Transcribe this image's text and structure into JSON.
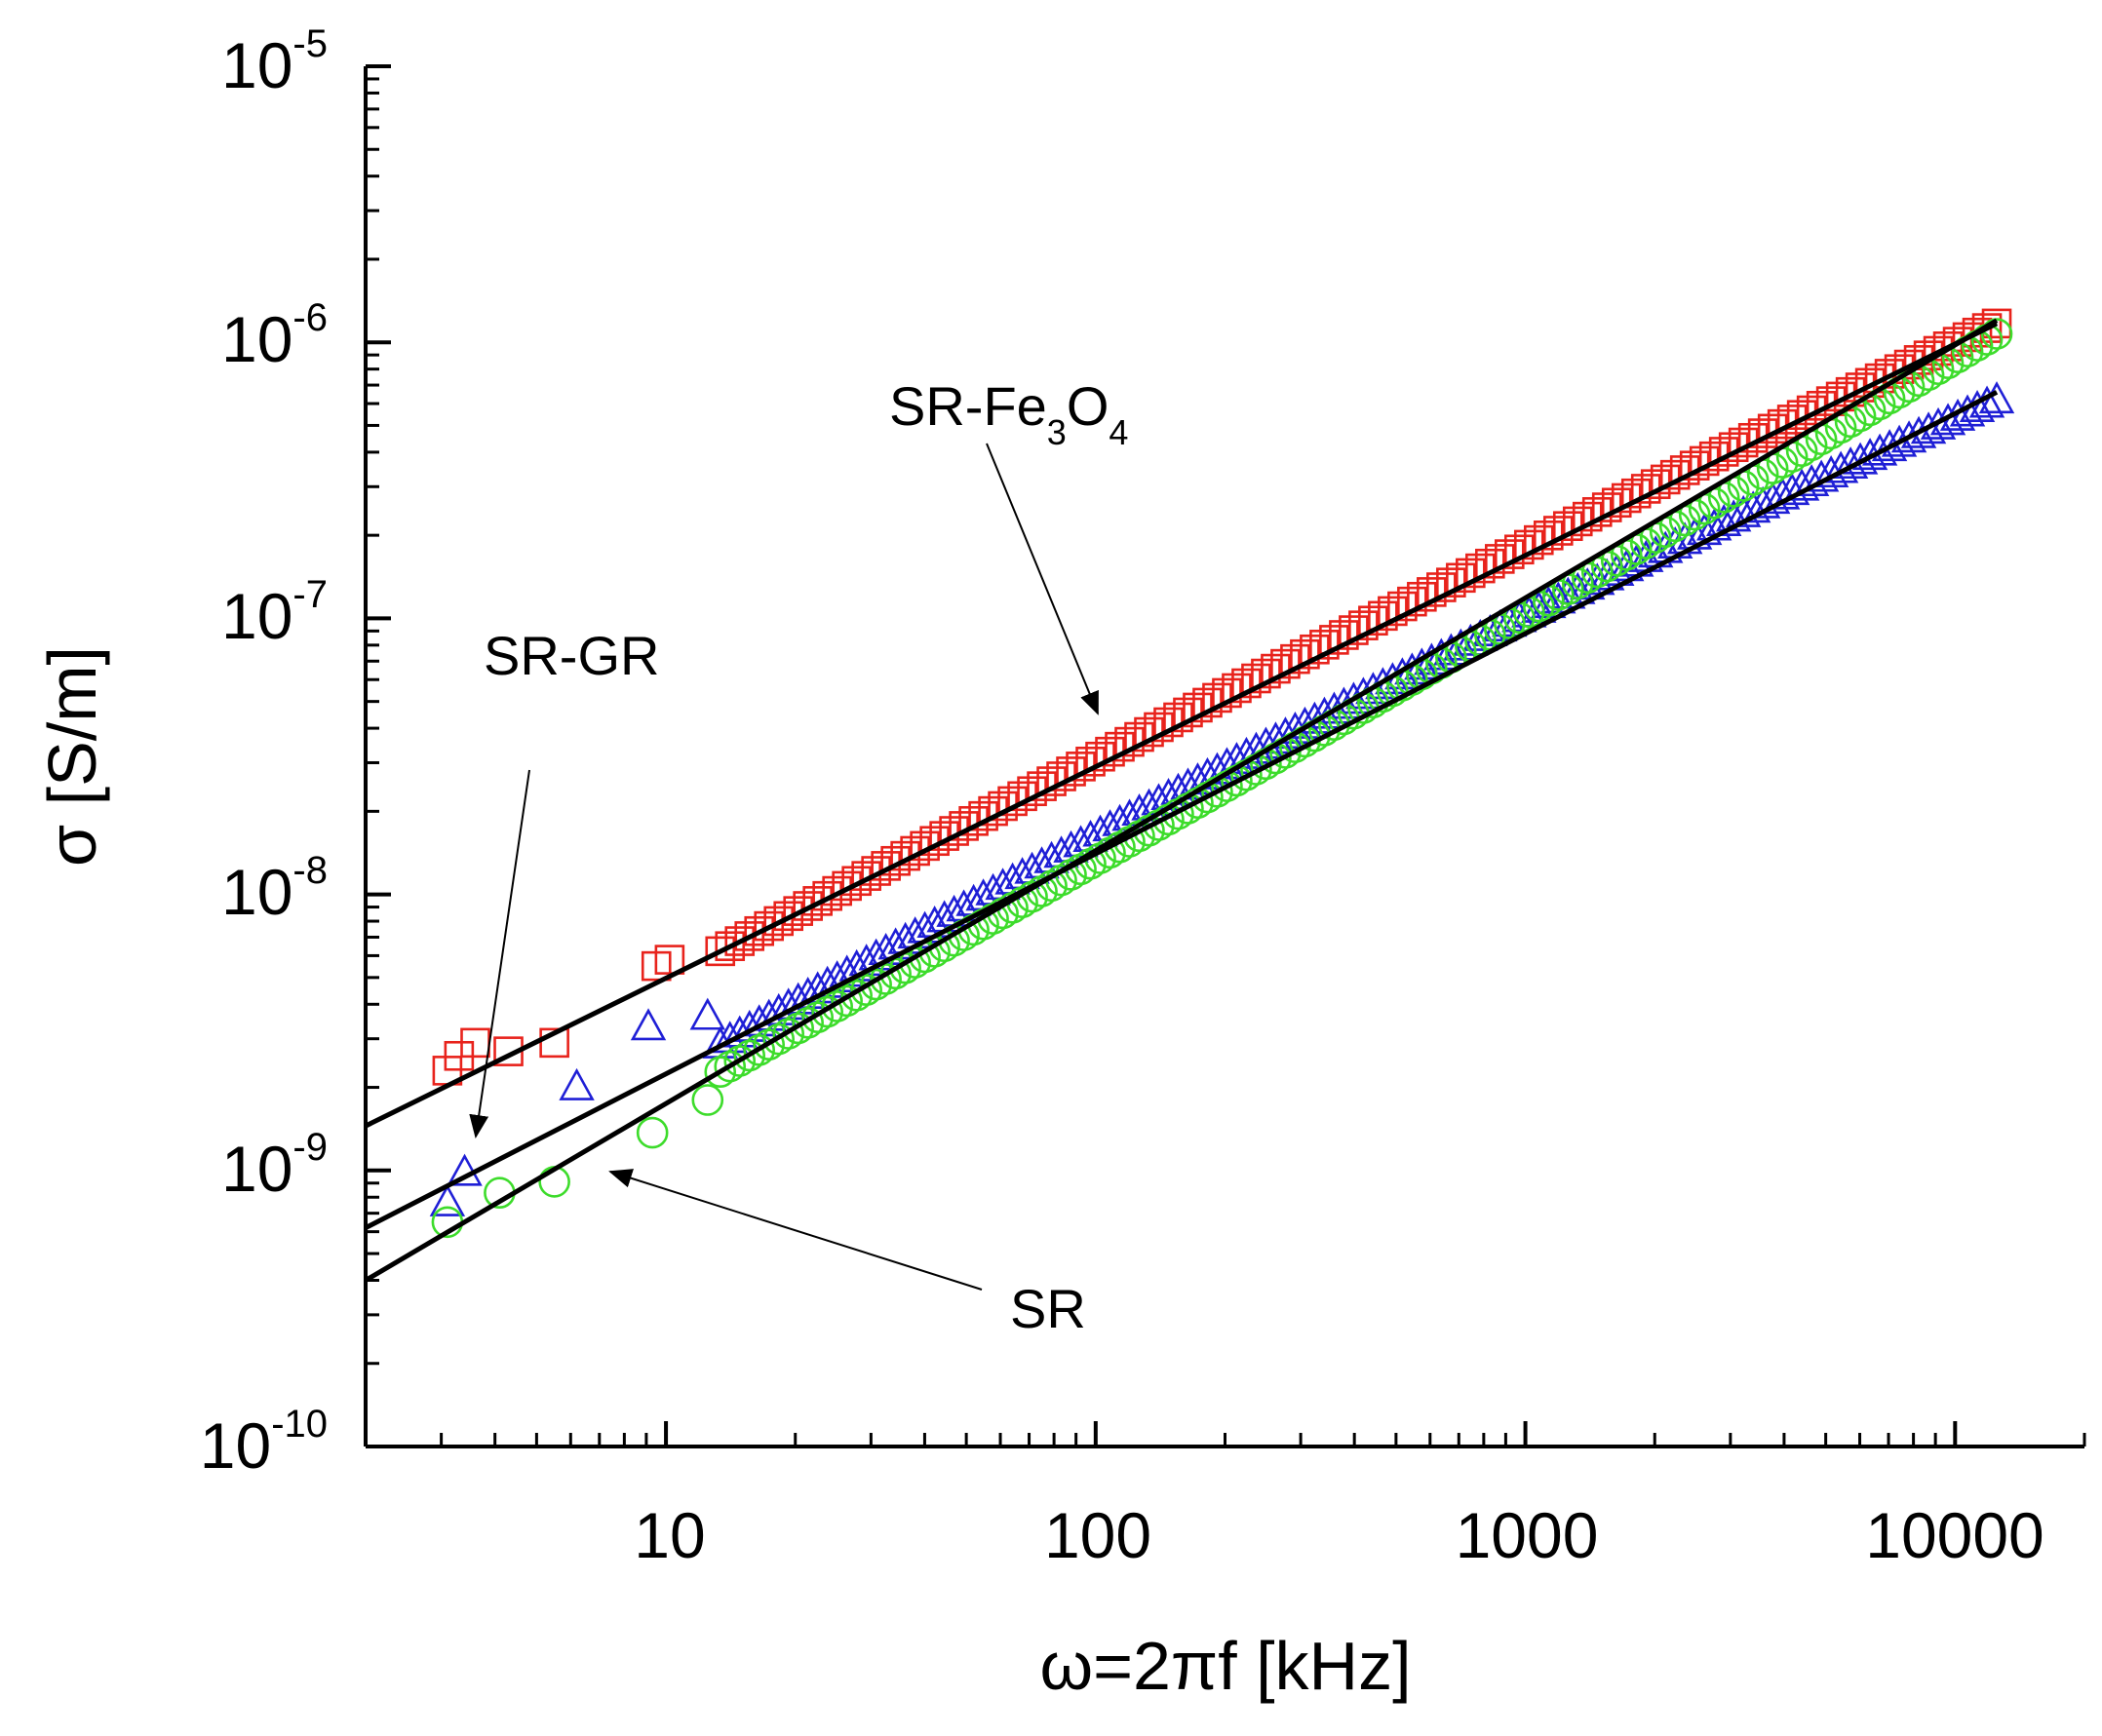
{
  "chart_data": {
    "type": "scatter",
    "xscale": "log",
    "yscale": "log",
    "xlabel": "ω=2πf [kHz]",
    "ylabel": "σ [S/m]",
    "xlim": [
      2,
      20000
    ],
    "ylim": [
      1e-10,
      1e-05
    ],
    "x_ticks": [
      {
        "value": 10,
        "label": "10"
      },
      {
        "value": 100,
        "label": "100"
      },
      {
        "value": 1000,
        "label": "1000"
      },
      {
        "value": 10000,
        "label": "10000"
      }
    ],
    "y_ticks": [
      {
        "value": 1e-10,
        "base": "10",
        "exp": "-10"
      },
      {
        "value": 1e-09,
        "base": "10",
        "exp": "-9"
      },
      {
        "value": 1e-08,
        "base": "10",
        "exp": "-8"
      },
      {
        "value": 1e-07,
        "base": "10",
        "exp": "-7"
      },
      {
        "value": 1e-06,
        "base": "10",
        "exp": "-6"
      },
      {
        "value": 1e-05,
        "base": "10",
        "exp": "-5"
      }
    ],
    "series": [
      {
        "name": "SR-Fe3O4",
        "marker": "square",
        "color": "#e8231c",
        "x_range": [
          3.1,
          12500
        ],
        "fit": {
          "x": [
            2,
            12500
          ],
          "y": [
            1.45e-09,
            1.17e-06
          ]
        },
        "points": [
          {
            "x": 3.1,
            "y": 2.3e-09
          },
          {
            "x": 3.3,
            "y": 2.6e-09
          },
          {
            "x": 3.6,
            "y": 2.9e-09
          },
          {
            "x": 4.3,
            "y": 2.7e-09
          },
          {
            "x": 5.5,
            "y": 2.9e-09
          },
          {
            "x": 9.5,
            "y": 5.5e-09
          },
          {
            "x": 10.2,
            "y": 5.8e-09
          }
        ]
      },
      {
        "name": "SR-GR",
        "marker": "triangle",
        "color": "#1f1fd6",
        "x_range": [
          3.1,
          12500
        ],
        "fit": {
          "x": [
            2,
            12500
          ],
          "y": [
            6.2e-10,
            6.6e-07
          ]
        },
        "points": [
          {
            "x": 3.1,
            "y": 7.6e-10
          },
          {
            "x": 3.4,
            "y": 9.8e-10
          },
          {
            "x": 6.2,
            "y": 2e-09
          },
          {
            "x": 9.1,
            "y": 3.3e-09
          },
          {
            "x": 12.5,
            "y": 3.6e-09
          }
        ]
      },
      {
        "name": "SR",
        "marker": "circle",
        "color": "#3ddc2b",
        "x_range": [
          3.1,
          12500
        ],
        "fit": {
          "x": [
            2,
            12500
          ],
          "y": [
            4e-10,
            1.2e-06
          ]
        },
        "points": [
          {
            "x": 3.1,
            "y": 6.5e-10
          },
          {
            "x": 4.1,
            "y": 8.3e-10
          },
          {
            "x": 5.5,
            "y": 9.1e-10
          },
          {
            "x": 9.3,
            "y": 1.37e-09
          },
          {
            "x": 12.5,
            "y": 1.8e-09
          }
        ]
      }
    ],
    "annotations": [
      {
        "text": "SR-Fe",
        "sub1": "3",
        "mid": "O",
        "sub2": "4",
        "series": "SR-Fe3O4"
      },
      {
        "text": "SR-GR",
        "series": "SR-GR"
      },
      {
        "text": "SR",
        "series": "SR"
      }
    ]
  }
}
